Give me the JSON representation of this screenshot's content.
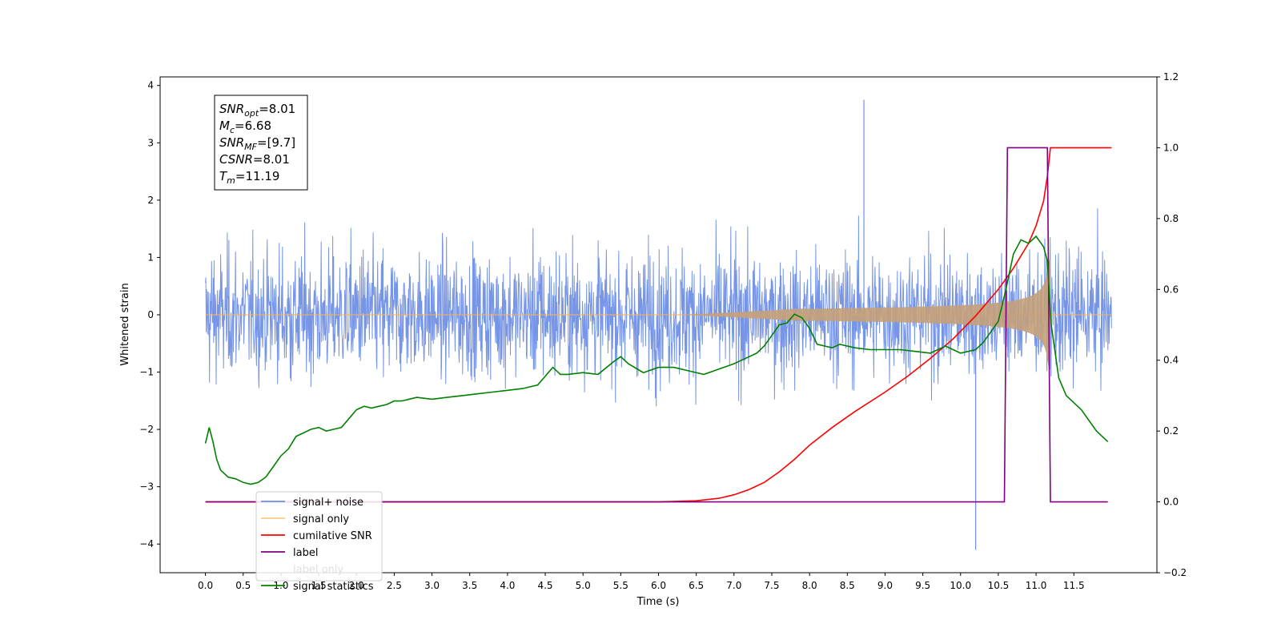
{
  "chart_data": {
    "type": "line",
    "xlabel": "Time (s)",
    "ylabel": "Whitened strain",
    "xlim": [
      -0.6,
      12.6
    ],
    "ylim_left": [
      -4.5,
      4.15
    ],
    "ylim_right": [
      -0.2,
      1.2
    ],
    "x_ticks": [
      "0.0",
      "0.5",
      "1.0",
      "1.5",
      "2.0",
      "2.5",
      "3.0",
      "3.5",
      "4.0",
      "4.5",
      "5.0",
      "5.5",
      "6.0",
      "6.5",
      "7.0",
      "7.5",
      "8.0",
      "8.5",
      "9.0",
      "9.5",
      "10.0",
      "10.5",
      "11.0",
      "11.5"
    ],
    "y_left_ticks": [
      "4",
      "3",
      "2",
      "1",
      "0",
      "−1",
      "−2",
      "−3",
      "−4"
    ],
    "y_right_ticks": [
      "1.2",
      "1.0",
      "0.8",
      "0.6",
      "0.4",
      "0.2",
      "0.0",
      "−0.2"
    ],
    "grid": false,
    "legend_position": "lower-left",
    "annotation_box": [
      {
        "base": "SNR",
        "sub": "opt",
        "rest": "=8.01"
      },
      {
        "base": "M",
        "sub": "c",
        "rest": "=6.68"
      },
      {
        "base": "SNR",
        "sub": "MF",
        "rest": "=[9.7]"
      },
      {
        "base": "CSNR",
        "sub": "",
        "rest": "=8.01"
      },
      {
        "base": "T",
        "sub": "m",
        "rest": "=11.19"
      }
    ],
    "series": [
      {
        "name": "signal+ noise",
        "axis": "left",
        "color": "#6f8fe6",
        "description_values": {
          "x_range": [
            0.0,
            12.0
          ],
          "typical_band": [
            -1.6,
            1.9
          ],
          "extremes": {
            "max": 3.75,
            "min": -4.1
          }
        }
      },
      {
        "name": "signal only",
        "axis": "left",
        "color": "#ffb347",
        "description_values": {
          "x_range": [
            0.0,
            12.0
          ],
          "merger_time": 11.19,
          "peak_amplitude": 0.95
        }
      },
      {
        "name": "cumilative SNR",
        "axis": "right",
        "color": "#ff0000",
        "x": [
          0.0,
          6.0,
          6.5,
          6.8,
          7.0,
          7.2,
          7.4,
          7.6,
          7.8,
          8.0,
          8.3,
          8.6,
          9.0,
          9.3,
          9.6,
          9.9,
          10.2,
          10.5,
          10.7,
          10.9,
          11.0,
          11.1,
          11.15,
          11.19,
          11.25,
          12.0
        ],
        "y": [
          0.0,
          0.0,
          0.003,
          0.01,
          0.02,
          0.035,
          0.055,
          0.085,
          0.12,
          0.16,
          0.21,
          0.255,
          0.31,
          0.355,
          0.405,
          0.46,
          0.525,
          0.6,
          0.66,
          0.73,
          0.78,
          0.85,
          0.92,
          1.0,
          1.0,
          1.0
        ]
      },
      {
        "name": "label",
        "axis": "right",
        "color": "#800080",
        "x": [
          0.0,
          10.58,
          10.62,
          11.15,
          11.19,
          11.95
        ],
        "y": [
          0.0,
          0.0,
          1.0,
          1.0,
          0.0,
          0.0
        ]
      },
      {
        "name": "label only",
        "axis": "right",
        "color": "#ffffff",
        "x": [],
        "y": []
      },
      {
        "name": "signal statistics",
        "axis": "right",
        "color": "#008000",
        "x": [
          0.0,
          0.05,
          0.1,
          0.15,
          0.2,
          0.3,
          0.4,
          0.5,
          0.6,
          0.7,
          0.8,
          0.9,
          1.0,
          1.1,
          1.2,
          1.3,
          1.4,
          1.5,
          1.6,
          1.7,
          1.8,
          1.9,
          2.0,
          2.1,
          2.2,
          2.3,
          2.4,
          2.5,
          2.6,
          2.8,
          3.0,
          3.2,
          3.4,
          3.6,
          3.8,
          4.0,
          4.2,
          4.4,
          4.6,
          4.7,
          4.8,
          5.0,
          5.2,
          5.4,
          5.5,
          5.6,
          5.8,
          6.0,
          6.2,
          6.4,
          6.6,
          6.8,
          7.0,
          7.1,
          7.2,
          7.3,
          7.4,
          7.5,
          7.6,
          7.7,
          7.8,
          7.9,
          8.0,
          8.1,
          8.2,
          8.3,
          8.4,
          8.6,
          8.8,
          9.0,
          9.2,
          9.4,
          9.6,
          9.8,
          10.0,
          10.2,
          10.3,
          10.5,
          10.6,
          10.7,
          10.8,
          10.9,
          11.0,
          11.1,
          11.15,
          11.2,
          11.3,
          11.4,
          11.6,
          11.8,
          11.95
        ],
        "y": [
          0.165,
          0.21,
          0.17,
          0.12,
          0.09,
          0.07,
          0.065,
          0.055,
          0.05,
          0.055,
          0.07,
          0.1,
          0.13,
          0.15,
          0.185,
          0.195,
          0.205,
          0.21,
          0.2,
          0.205,
          0.21,
          0.235,
          0.26,
          0.27,
          0.265,
          0.27,
          0.275,
          0.285,
          0.285,
          0.295,
          0.29,
          0.295,
          0.3,
          0.305,
          0.31,
          0.315,
          0.32,
          0.33,
          0.38,
          0.36,
          0.36,
          0.365,
          0.36,
          0.395,
          0.41,
          0.39,
          0.365,
          0.38,
          0.38,
          0.37,
          0.36,
          0.375,
          0.39,
          0.4,
          0.41,
          0.42,
          0.44,
          0.47,
          0.5,
          0.505,
          0.53,
          0.52,
          0.49,
          0.445,
          0.44,
          0.435,
          0.445,
          0.435,
          0.43,
          0.43,
          0.43,
          0.425,
          0.42,
          0.44,
          0.42,
          0.43,
          0.45,
          0.51,
          0.6,
          0.7,
          0.74,
          0.73,
          0.75,
          0.72,
          0.68,
          0.5,
          0.35,
          0.3,
          0.26,
          0.2,
          0.17
        ]
      }
    ]
  }
}
